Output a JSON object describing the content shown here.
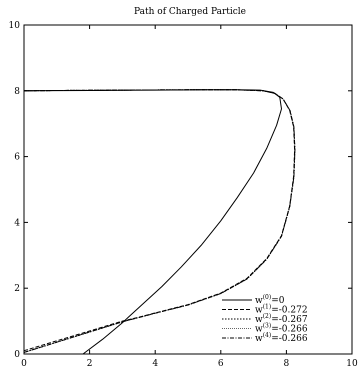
{
  "chart_data": {
    "type": "line",
    "title": "Path of Charged Particle",
    "xlabel": "",
    "ylabel": "",
    "xlim": [
      0,
      10
    ],
    "ylim": [
      0,
      10
    ],
    "xticks": [
      0,
      2,
      4,
      6,
      8,
      10
    ],
    "yticks": [
      0,
      2,
      4,
      6,
      8,
      10
    ],
    "grid": false,
    "legend_position": "bottom-right",
    "series": [
      {
        "name": "w(0)=0",
        "label_base": "w",
        "label_sup": "(0)",
        "label_value": "=0",
        "line_style": "solid",
        "x": [
          1.8,
          2.4,
          3.0,
          3.6,
          4.2,
          4.8,
          5.4,
          6.0,
          6.5,
          7.0,
          7.4,
          7.7,
          7.85,
          7.8,
          7.6,
          7.2,
          6.5,
          5.5,
          4.0,
          2.0,
          0.0
        ],
        "y": [
          0.0,
          0.45,
          0.95,
          1.5,
          2.05,
          2.65,
          3.3,
          4.05,
          4.75,
          5.5,
          6.25,
          6.95,
          7.45,
          7.8,
          7.95,
          8.02,
          8.03,
          8.03,
          8.02,
          8.01,
          8.0
        ]
      },
      {
        "name": "w(1)=-0.272",
        "label_base": "w",
        "label_sup": "(1)",
        "label_value": "=-0.272",
        "line_style": "dashed",
        "x": [
          0.0,
          1.0,
          2.0,
          3.0,
          3.5,
          4.0,
          5.0,
          6.0,
          6.8,
          7.4,
          7.85,
          8.1,
          8.22,
          8.25,
          8.22,
          8.1,
          7.9,
          7.65,
          7.3,
          6.5,
          5.0,
          3.0,
          1.0,
          0.0
        ],
        "y": [
          0.1,
          0.4,
          0.7,
          1.0,
          1.12,
          1.25,
          1.5,
          1.85,
          2.3,
          2.9,
          3.6,
          4.5,
          5.4,
          6.2,
          6.9,
          7.4,
          7.75,
          7.92,
          8.0,
          8.03,
          8.03,
          8.02,
          8.01,
          8.0
        ]
      },
      {
        "name": "w(2)=-0.267",
        "label_base": "w",
        "label_sup": "(2)",
        "label_value": "=-0.267",
        "line_style": "dotted",
        "x": [
          0.0,
          1.0,
          2.0,
          3.0,
          3.5,
          4.0,
          5.0,
          6.0,
          6.8,
          7.4,
          7.85,
          8.1,
          8.23,
          8.26,
          8.23,
          8.11,
          7.9,
          7.65,
          7.3,
          6.5,
          5.0,
          3.0,
          1.0,
          0.0
        ],
        "y": [
          0.05,
          0.36,
          0.67,
          0.98,
          1.11,
          1.24,
          1.49,
          1.84,
          2.28,
          2.88,
          3.58,
          4.48,
          5.38,
          6.2,
          6.9,
          7.4,
          7.75,
          7.92,
          8.0,
          8.03,
          8.03,
          8.02,
          8.01,
          8.0
        ]
      },
      {
        "name": "w(3)=-0.266",
        "label_base": "w",
        "label_sup": "(3)",
        "label_value": "=-0.266",
        "line_style": "fine-dotted",
        "x": [
          0.0,
          1.0,
          2.0,
          3.0,
          3.5,
          4.0,
          5.0,
          6.0,
          6.8,
          7.4,
          7.85,
          8.1,
          8.23,
          8.26,
          8.23,
          8.11,
          7.9,
          7.65,
          7.3,
          6.5,
          5.0,
          3.0,
          1.0,
          0.0
        ],
        "y": [
          0.05,
          0.36,
          0.67,
          0.98,
          1.11,
          1.24,
          1.49,
          1.84,
          2.28,
          2.88,
          3.58,
          4.48,
          5.38,
          6.2,
          6.9,
          7.4,
          7.75,
          7.92,
          8.0,
          8.03,
          8.03,
          8.02,
          8.01,
          8.0
        ]
      },
      {
        "name": "w(4)=-0.266",
        "label_base": "w",
        "label_sup": "(4)",
        "label_value": "=-0.266",
        "line_style": "dash-dot",
        "x": [
          0.0,
          1.0,
          2.0,
          3.0,
          3.5,
          4.0,
          5.0,
          6.0,
          6.8,
          7.4,
          7.85,
          8.1,
          8.23,
          8.26,
          8.23,
          8.11,
          7.9,
          7.65,
          7.3,
          6.5,
          5.0,
          3.0,
          1.0,
          0.0
        ],
        "y": [
          0.05,
          0.36,
          0.67,
          0.98,
          1.11,
          1.24,
          1.49,
          1.84,
          2.28,
          2.88,
          3.58,
          4.48,
          5.38,
          6.2,
          6.9,
          7.4,
          7.75,
          7.92,
          8.0,
          8.03,
          8.03,
          8.02,
          8.01,
          8.0
        ]
      }
    ]
  }
}
